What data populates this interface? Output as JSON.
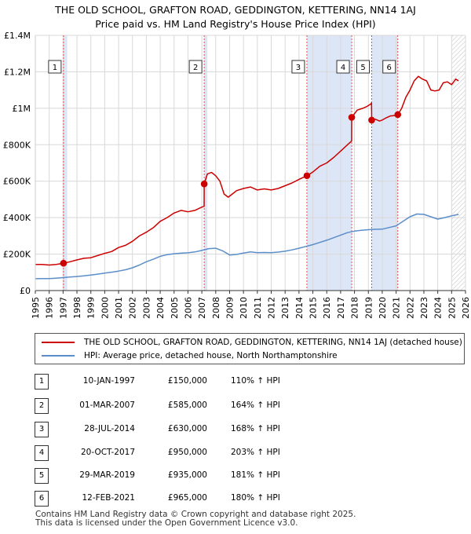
{
  "title": {
    "line1": "THE OLD SCHOOL, GRAFTON ROAD, GEDDINGTON, KETTERING, NN14 1AJ",
    "line2": "Price paid vs. HM Land Registry's House Price Index (HPI)"
  },
  "colors": {
    "price": "#cc0000",
    "hpi": "#5b8ec9",
    "shade": "#dde6f6",
    "grid": "#d8d8d8",
    "vline": "#e05050"
  },
  "chart_data": {
    "type": "line",
    "title": "Price paid vs. HM Land Registry's House Price Index (HPI)",
    "xlabel": "",
    "ylabel": "",
    "xlim": [
      1995,
      2026
    ],
    "ylim": [
      0,
      1400000
    ],
    "x_ticks": [
      "1995",
      "1996",
      "1997",
      "1998",
      "1999",
      "2000",
      "2001",
      "2002",
      "2003",
      "2004",
      "2005",
      "2006",
      "2007",
      "2008",
      "2009",
      "2010",
      "2011",
      "2012",
      "2013",
      "2014",
      "2015",
      "2016",
      "2017",
      "2018",
      "2019",
      "2020",
      "2021",
      "2022",
      "2023",
      "2024",
      "2025",
      "2026"
    ],
    "y_ticks": [
      {
        "value": 0,
        "label": "£0"
      },
      {
        "value": 200000,
        "label": "£200K"
      },
      {
        "value": 400000,
        "label": "£400K"
      },
      {
        "value": 600000,
        "label": "£600K"
      },
      {
        "value": 800000,
        "label": "£800K"
      },
      {
        "value": 1000000,
        "label": "£1M"
      },
      {
        "value": 1200000,
        "label": "£1.2M"
      },
      {
        "value": 1400000,
        "label": "£1.4M"
      }
    ],
    "forecast_start": 2025.0,
    "shaded_periods": [
      [
        1997.03,
        1997.3
      ],
      [
        2007.17,
        2007.4
      ],
      [
        2014.57,
        2017.8
      ],
      [
        2019.24,
        2021.12
      ]
    ],
    "series": [
      {
        "name": "THE OLD SCHOOL, GRAFTON ROAD, GEDDINGTON, KETTERING, NN14 1AJ (detached house)",
        "color": "#cc0000",
        "x": [
          1995.0,
          1995.5,
          1996.0,
          1996.5,
          1997.03,
          1997.5,
          1998.0,
          1998.5,
          1999.0,
          1999.5,
          2000.0,
          2000.5,
          2001.0,
          2001.5,
          2002.0,
          2002.5,
          2003.0,
          2003.5,
          2004.0,
          2004.5,
          2005.0,
          2005.5,
          2006.0,
          2006.5,
          2007.0,
          2007.16,
          2007.17,
          2007.4,
          2007.7,
          2008.0,
          2008.3,
          2008.6,
          2008.9,
          2009.2,
          2009.5,
          2010.0,
          2010.5,
          2011.0,
          2011.5,
          2012.0,
          2012.5,
          2013.0,
          2013.5,
          2014.0,
          2014.57,
          2015.0,
          2015.5,
          2016.0,
          2016.5,
          2017.0,
          2017.5,
          2017.79,
          2017.8,
          2018.2,
          2018.6,
          2018.9,
          2019.2,
          2019.23,
          2019.24,
          2019.5,
          2019.8,
          2020.0,
          2020.3,
          2020.6,
          2020.9,
          2021.12,
          2021.4,
          2021.7,
          2022.0,
          2022.3,
          2022.6,
          2022.9,
          2023.2,
          2023.5,
          2023.8,
          2024.1,
          2024.4,
          2024.7,
          2025.0,
          2025.3,
          2025.5
        ],
        "y": [
          143000,
          143000,
          140000,
          143000,
          150000,
          158000,
          168000,
          177000,
          180000,
          192000,
          204000,
          214000,
          236000,
          248000,
          270000,
          300000,
          320000,
          345000,
          380000,
          400000,
          425000,
          440000,
          432000,
          440000,
          458000,
          462000,
          585000,
          640000,
          648000,
          630000,
          600000,
          530000,
          512000,
          530000,
          548000,
          560000,
          568000,
          552000,
          558000,
          552000,
          560000,
          575000,
          590000,
          610000,
          630000,
          650000,
          682000,
          700000,
          730000,
          765000,
          800000,
          820000,
          950000,
          990000,
          1000000,
          1010000,
          1025000,
          1030000,
          935000,
          940000,
          930000,
          935000,
          948000,
          958000,
          960000,
          965000,
          1000000,
          1060000,
          1100000,
          1150000,
          1175000,
          1160000,
          1150000,
          1100000,
          1095000,
          1100000,
          1140000,
          1145000,
          1130000,
          1160000,
          1150000
        ]
      },
      {
        "name": "HPI: Average price, detached house, North Northamptonshire",
        "color": "#5b8ec9",
        "x": [
          1995.0,
          1995.5,
          1996.0,
          1996.5,
          1997.0,
          1997.5,
          1998.0,
          1998.5,
          1999.0,
          1999.5,
          2000.0,
          2000.5,
          2001.0,
          2001.5,
          2002.0,
          2002.5,
          2003.0,
          2003.5,
          2004.0,
          2004.5,
          2005.0,
          2005.5,
          2006.0,
          2006.5,
          2007.0,
          2007.5,
          2008.0,
          2008.5,
          2009.0,
          2009.5,
          2010.0,
          2010.5,
          2011.0,
          2011.5,
          2012.0,
          2012.5,
          2013.0,
          2013.5,
          2014.0,
          2014.5,
          2015.0,
          2015.5,
          2016.0,
          2016.5,
          2017.0,
          2017.5,
          2018.0,
          2018.5,
          2019.0,
          2019.5,
          2020.0,
          2020.5,
          2021.0,
          2021.5,
          2022.0,
          2022.5,
          2023.0,
          2023.5,
          2024.0,
          2024.5,
          2025.0,
          2025.5
        ],
        "y": [
          65000,
          66000,
          66000,
          68000,
          71000,
          74000,
          77000,
          81000,
          85000,
          90000,
          96000,
          101000,
          107000,
          114000,
          125000,
          140000,
          158000,
          172000,
          188000,
          197000,
          202000,
          205000,
          207000,
          212000,
          220000,
          230000,
          232000,
          218000,
          195000,
          198000,
          206000,
          212000,
          208000,
          209000,
          208000,
          211000,
          216000,
          223000,
          232000,
          242000,
          252000,
          264000,
          276000,
          290000,
          304000,
          318000,
          326000,
          331000,
          334000,
          336000,
          337000,
          346000,
          355000,
          380000,
          405000,
          420000,
          418000,
          405000,
          392000,
          400000,
          410000,
          418000
        ]
      }
    ],
    "markers": [
      {
        "num": "1",
        "x": 1997.03,
        "y": 150000
      },
      {
        "num": "2",
        "x": 2007.17,
        "y": 585000
      },
      {
        "num": "3",
        "x": 2014.57,
        "y": 630000
      },
      {
        "num": "4",
        "x": 2017.8,
        "y": 950000
      },
      {
        "num": "5",
        "x": 2019.24,
        "y": 935000
      },
      {
        "num": "6",
        "x": 2021.12,
        "y": 965000
      }
    ]
  },
  "legend": {
    "price_label": "THE OLD SCHOOL, GRAFTON ROAD, GEDDINGTON, KETTERING, NN14 1AJ (detached house)",
    "hpi_label": "HPI: Average price, detached house, North Northamptonshire"
  },
  "transactions": [
    {
      "num": "1",
      "date": "10-JAN-1997",
      "price": "£150,000",
      "hpi": "110% ↑ HPI"
    },
    {
      "num": "2",
      "date": "01-MAR-2007",
      "price": "£585,000",
      "hpi": "164% ↑ HPI"
    },
    {
      "num": "3",
      "date": "28-JUL-2014",
      "price": "£630,000",
      "hpi": "168% ↑ HPI"
    },
    {
      "num": "4",
      "date": "20-OCT-2017",
      "price": "£950,000",
      "hpi": "203% ↑ HPI"
    },
    {
      "num": "5",
      "date": "29-MAR-2019",
      "price": "£935,000",
      "hpi": "181% ↑ HPI"
    },
    {
      "num": "6",
      "date": "12-FEB-2021",
      "price": "£965,000",
      "hpi": "180% ↑ HPI"
    }
  ],
  "footer": {
    "line1": "Contains HM Land Registry data © Crown copyright and database right 2025.",
    "line2": "This data is licensed under the Open Government Licence v3.0."
  }
}
